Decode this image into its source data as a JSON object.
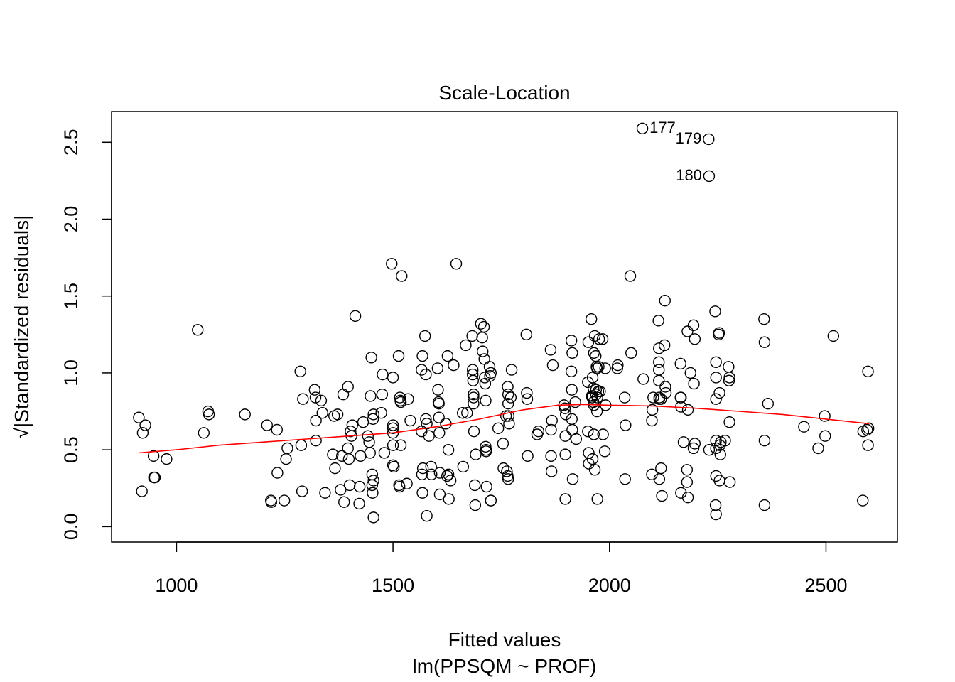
{
  "chart_data": {
    "type": "scatter",
    "title": "Scale-Location",
    "xlabel": "Fitted values",
    "xsublabel": "lm(PPSQM ~ PROF)",
    "ylabel": "√|Standardized residuals|",
    "xlim": [
      850,
      2665
    ],
    "ylim": [
      -0.1,
      2.7
    ],
    "xticks": [
      1000,
      1500,
      2000,
      2500
    ],
    "xtick_labels": [
      "1000",
      "1500",
      "2000",
      "2500"
    ],
    "yticks": [
      0.0,
      0.5,
      1.0,
      1.5,
      2.0,
      2.5
    ],
    "ytick_labels": [
      "0.0",
      "0.5",
      "1.0",
      "1.5",
      "2.0",
      "2.5"
    ],
    "grid": false,
    "point_color": "#000000",
    "smooth_color": "#ff0000",
    "points": [
      [
        913,
        0.71
      ],
      [
        920,
        0.23
      ],
      [
        922,
        0.61
      ],
      [
        928,
        0.66
      ],
      [
        947,
        0.46
      ],
      [
        948,
        0.32
      ],
      [
        950,
        0.32
      ],
      [
        977,
        0.44
      ],
      [
        1049,
        1.28
      ],
      [
        1063,
        0.61
      ],
      [
        1073,
        0.75
      ],
      [
        1075,
        0.73
      ],
      [
        1158,
        0.73
      ],
      [
        1209,
        0.66
      ],
      [
        1218,
        0.17
      ],
      [
        1219,
        0.16
      ],
      [
        1232,
        0.63
      ],
      [
        1233,
        0.35
      ],
      [
        1249,
        0.17
      ],
      [
        1253,
        0.44
      ],
      [
        1256,
        0.51
      ],
      [
        1286,
        1.01
      ],
      [
        1288,
        0.53
      ],
      [
        1290,
        0.23
      ],
      [
        1292,
        0.83
      ],
      [
        1319,
        0.89
      ],
      [
        1321,
        0.84
      ],
      [
        1322,
        0.69
      ],
      [
        1322,
        0.56
      ],
      [
        1334,
        0.82
      ],
      [
        1337,
        0.74
      ],
      [
        1343,
        0.22
      ],
      [
        1361,
        0.47
      ],
      [
        1364,
        0.72
      ],
      [
        1366,
        0.38
      ],
      [
        1372,
        0.73
      ],
      [
        1379,
        0.24
      ],
      [
        1382,
        0.46
      ],
      [
        1385,
        0.86
      ],
      [
        1387,
        0.16
      ],
      [
        1396,
        0.91
      ],
      [
        1396,
        0.51
      ],
      [
        1398,
        0.44
      ],
      [
        1400,
        0.27
      ],
      [
        1402,
        0.62
      ],
      [
        1404,
        0.59
      ],
      [
        1406,
        0.66
      ],
      [
        1413,
        1.37
      ],
      [
        1422,
        0.15
      ],
      [
        1423,
        0.26
      ],
      [
        1425,
        0.46
      ],
      [
        1431,
        0.68
      ],
      [
        1442,
        0.59
      ],
      [
        1445,
        0.55
      ],
      [
        1447,
        0.48
      ],
      [
        1448,
        0.85
      ],
      [
        1450,
        1.1
      ],
      [
        1452,
        0.27
      ],
      [
        1452,
        0.34
      ],
      [
        1453,
        0.22
      ],
      [
        1454,
        0.7
      ],
      [
        1455,
        0.3
      ],
      [
        1455,
        0.06
      ],
      [
        1455,
        0.73
      ],
      [
        1473,
        0.74
      ],
      [
        1475,
        0.86
      ],
      [
        1476,
        0.99
      ],
      [
        1480,
        0.48
      ],
      [
        1497,
        1.71
      ],
      [
        1500,
        0.97
      ],
      [
        1500,
        0.66
      ],
      [
        1500,
        0.64
      ],
      [
        1500,
        0.61
      ],
      [
        1500,
        0.53
      ],
      [
        1500,
        0.4
      ],
      [
        1502,
        0.39
      ],
      [
        1513,
        1.11
      ],
      [
        1514,
        0.27
      ],
      [
        1515,
        0.26
      ],
      [
        1516,
        0.84
      ],
      [
        1518,
        0.53
      ],
      [
        1517,
        0.82
      ],
      [
        1518,
        0.81
      ],
      [
        1520,
        1.63
      ],
      [
        1532,
        0.28
      ],
      [
        1535,
        0.83
      ],
      [
        1540,
        0.69
      ],
      [
        1568,
        1.11
      ],
      [
        1566,
        1.02
      ],
      [
        1566,
        0.62
      ],
      [
        1567,
        0.34
      ],
      [
        1569,
        0.38
      ],
      [
        1568,
        0.22
      ],
      [
        1574,
        1.24
      ],
      [
        1576,
        0.99
      ],
      [
        1576,
        0.7
      ],
      [
        1578,
        0.67
      ],
      [
        1578,
        0.07
      ],
      [
        1583,
        0.59
      ],
      [
        1588,
        0.39
      ],
      [
        1589,
        0.34
      ],
      [
        1603,
        1.03
      ],
      [
        1604,
        0.89
      ],
      [
        1605,
        0.81
      ],
      [
        1606,
        0.8
      ],
      [
        1606,
        0.71
      ],
      [
        1607,
        0.61
      ],
      [
        1608,
        0.35
      ],
      [
        1608,
        0.21
      ],
      [
        1622,
        0.67
      ],
      [
        1625,
        0.33
      ],
      [
        1626,
        1.11
      ],
      [
        1628,
        0.5
      ],
      [
        1628,
        0.34
      ],
      [
        1629,
        0.18
      ],
      [
        1633,
        0.3
      ],
      [
        1640,
        1.05
      ],
      [
        1646,
        1.71
      ],
      [
        1661,
        0.74
      ],
      [
        1662,
        0.39
      ],
      [
        1668,
        1.18
      ],
      [
        1671,
        0.74
      ],
      [
        1683,
        1.24
      ],
      [
        1684,
        1.02
      ],
      [
        1684,
        0.99
      ],
      [
        1685,
        0.95
      ],
      [
        1686,
        0.86
      ],
      [
        1686,
        0.84
      ],
      [
        1686,
        0.8
      ],
      [
        1687,
        0.62
      ],
      [
        1689,
        0.27
      ],
      [
        1690,
        0.14
      ],
      [
        1691,
        0.47
      ],
      [
        1703,
        1.32
      ],
      [
        1706,
        1.23
      ],
      [
        1707,
        1.14
      ],
      [
        1710,
        1.3
      ],
      [
        1711,
        1.09
      ],
      [
        1712,
        0.97
      ],
      [
        1713,
        0.93
      ],
      [
        1714,
        0.82
      ],
      [
        1714,
        0.52
      ],
      [
        1715,
        0.5
      ],
      [
        1715,
        0.49
      ],
      [
        1716,
        0.26
      ],
      [
        1723,
        1.04
      ],
      [
        1724,
        0.98
      ],
      [
        1726,
        1.0
      ],
      [
        1726,
        0.17
      ],
      [
        1726,
        0.17
      ],
      [
        1743,
        0.64
      ],
      [
        1754,
        0.54
      ],
      [
        1755,
        0.38
      ],
      [
        1761,
        0.72
      ],
      [
        1763,
        0.36
      ],
      [
        1765,
        0.91
      ],
      [
        1765,
        0.33
      ],
      [
        1766,
        0.31
      ],
      [
        1766,
        0.86
      ],
      [
        1766,
        0.8
      ],
      [
        1767,
        0.72
      ],
      [
        1768,
        0.67
      ],
      [
        1772,
        0.84
      ],
      [
        1774,
        1.02
      ],
      [
        1808,
        1.25
      ],
      [
        1809,
        0.87
      ],
      [
        1810,
        0.83
      ],
      [
        1811,
        0.46
      ],
      [
        1833,
        0.6
      ],
      [
        1836,
        0.62
      ],
      [
        1864,
        1.15
      ],
      [
        1865,
        0.63
      ],
      [
        1865,
        0.46
      ],
      [
        1866,
        0.36
      ],
      [
        1867,
        0.69
      ],
      [
        1869,
        1.05
      ],
      [
        1895,
        0.79
      ],
      [
        1897,
        0.77
      ],
      [
        1898,
        0.18
      ],
      [
        1898,
        0.47
      ],
      [
        1898,
        0.59
      ],
      [
        1899,
        0.73
      ],
      [
        1912,
        1.21
      ],
      [
        1912,
        1.01
      ],
      [
        1913,
        0.89
      ],
      [
        1913,
        0.7
      ],
      [
        1914,
        0.63
      ],
      [
        1914,
        1.13
      ],
      [
        1915,
        0.31
      ],
      [
        1921,
        0.81
      ],
      [
        1923,
        0.57
      ],
      [
        1950,
        0.94
      ],
      [
        1950,
        0.62
      ],
      [
        1951,
        1.2
      ],
      [
        1952,
        0.48
      ],
      [
        1952,
        0.41
      ],
      [
        1958,
        1.35
      ],
      [
        1959,
        0.85
      ],
      [
        1960,
        0.84
      ],
      [
        1961,
        0.97
      ],
      [
        1961,
        0.85
      ],
      [
        1961,
        0.44
      ],
      [
        1963,
        0.9
      ],
      [
        1963,
        0.81
      ],
      [
        1964,
        0.79
      ],
      [
        1964,
        0.6
      ],
      [
        1964,
        1.13
      ],
      [
        1966,
        1.24
      ],
      [
        1966,
        0.37
      ],
      [
        1968,
        1.11
      ],
      [
        1969,
        0.86
      ],
      [
        1969,
        0.89
      ],
      [
        1970,
        1.04
      ],
      [
        1971,
        0.75
      ],
      [
        1971,
        1.03
      ],
      [
        1972,
        0.84
      ],
      [
        1972,
        0.18
      ],
      [
        1974,
        0.88
      ],
      [
        1975,
        1.04
      ],
      [
        1976,
        1.22
      ],
      [
        1978,
        0.88
      ],
      [
        1984,
        1.22
      ],
      [
        1985,
        0.6
      ],
      [
        1989,
        0.49
      ],
      [
        1990,
        1.03
      ],
      [
        1991,
        0.79
      ],
      [
        2018,
        1.03
      ],
      [
        2019,
        1.05
      ],
      [
        2035,
        0.84
      ],
      [
        2036,
        0.31
      ],
      [
        2037,
        0.66
      ],
      [
        2048,
        1.63
      ],
      [
        2050,
        1.13
      ],
      [
        2076,
        2.59
      ],
      [
        2078,
        0.96
      ],
      [
        2098,
        0.34
      ],
      [
        2098,
        0.69
      ],
      [
        2099,
        0.76
      ],
      [
        2101,
        0.84
      ],
      [
        2113,
        1.34
      ],
      [
        2114,
        1.16
      ],
      [
        2114,
        1.07
      ],
      [
        2114,
        1.02
      ],
      [
        2114,
        0.95
      ],
      [
        2115,
        0.83
      ],
      [
        2115,
        0.84
      ],
      [
        2115,
        0.31
      ],
      [
        2119,
        0.83
      ],
      [
        2119,
        0.38
      ],
      [
        2121,
        0.2
      ],
      [
        2127,
        1.18
      ],
      [
        2128,
        1.47
      ],
      [
        2129,
        0.91
      ],
      [
        2130,
        0.87
      ],
      [
        2164,
        0.84
      ],
      [
        2164,
        1.06
      ],
      [
        2165,
        0.84
      ],
      [
        2165,
        0.78
      ],
      [
        2165,
        0.22
      ],
      [
        2171,
        0.55
      ],
      [
        2179,
        0.29
      ],
      [
        2179,
        0.37
      ],
      [
        2180,
        1.27
      ],
      [
        2181,
        0.19
      ],
      [
        2181,
        0.76
      ],
      [
        2187,
        1.0
      ],
      [
        2194,
        0.51
      ],
      [
        2194,
        1.31
      ],
      [
        2195,
        0.93
      ],
      [
        2197,
        0.54
      ],
      [
        2197,
        1.22
      ],
      [
        2229,
        2.52
      ],
      [
        2230,
        2.28
      ],
      [
        2230,
        0.5
      ],
      [
        2244,
        1.4
      ],
      [
        2245,
        0.14
      ],
      [
        2246,
        1.07
      ],
      [
        2246,
        0.97
      ],
      [
        2246,
        0.83
      ],
      [
        2246,
        0.56
      ],
      [
        2246,
        0.51
      ],
      [
        2246,
        0.33
      ],
      [
        2246,
        0.08
      ],
      [
        2252,
        1.25
      ],
      [
        2253,
        1.26
      ],
      [
        2254,
        0.3
      ],
      [
        2254,
        0.87
      ],
      [
        2255,
        0.53
      ],
      [
        2256,
        0.47
      ],
      [
        2257,
        0.55
      ],
      [
        2267,
        0.56
      ],
      [
        2275,
        1.04
      ],
      [
        2276,
        0.95
      ],
      [
        2277,
        0.97
      ],
      [
        2277,
        0.68
      ],
      [
        2278,
        0.29
      ],
      [
        2357,
        1.35
      ],
      [
        2358,
        1.2
      ],
      [
        2358,
        0.56
      ],
      [
        2358,
        0.14
      ],
      [
        2366,
        0.8
      ],
      [
        2449,
        0.65
      ],
      [
        2482,
        0.51
      ],
      [
        2497,
        0.72
      ],
      [
        2498,
        0.59
      ],
      [
        2517,
        1.24
      ],
      [
        2585,
        0.17
      ],
      [
        2586,
        0.62
      ],
      [
        2595,
        0.63
      ],
      [
        2597,
        1.01
      ],
      [
        2597,
        0.53
      ],
      [
        2598,
        0.64
      ]
    ],
    "smooth_line": [
      [
        913,
        0.48
      ],
      [
        1000,
        0.5
      ],
      [
        1100,
        0.53
      ],
      [
        1200,
        0.55
      ],
      [
        1300,
        0.57
      ],
      [
        1400,
        0.59
      ],
      [
        1500,
        0.61
      ],
      [
        1600,
        0.65
      ],
      [
        1700,
        0.7
      ],
      [
        1800,
        0.76
      ],
      [
        1880,
        0.79
      ],
      [
        1940,
        0.795
      ],
      [
        2000,
        0.79
      ],
      [
        2100,
        0.785
      ],
      [
        2200,
        0.77
      ],
      [
        2300,
        0.75
      ],
      [
        2400,
        0.73
      ],
      [
        2500,
        0.7
      ],
      [
        2600,
        0.67
      ]
    ],
    "annotations": [
      {
        "x": 2076,
        "y": 2.59,
        "label": "177",
        "side": "right"
      },
      {
        "x": 2229,
        "y": 2.52,
        "label": "179",
        "side": "left"
      },
      {
        "x": 2230,
        "y": 2.28,
        "label": "180",
        "side": "left"
      }
    ]
  }
}
